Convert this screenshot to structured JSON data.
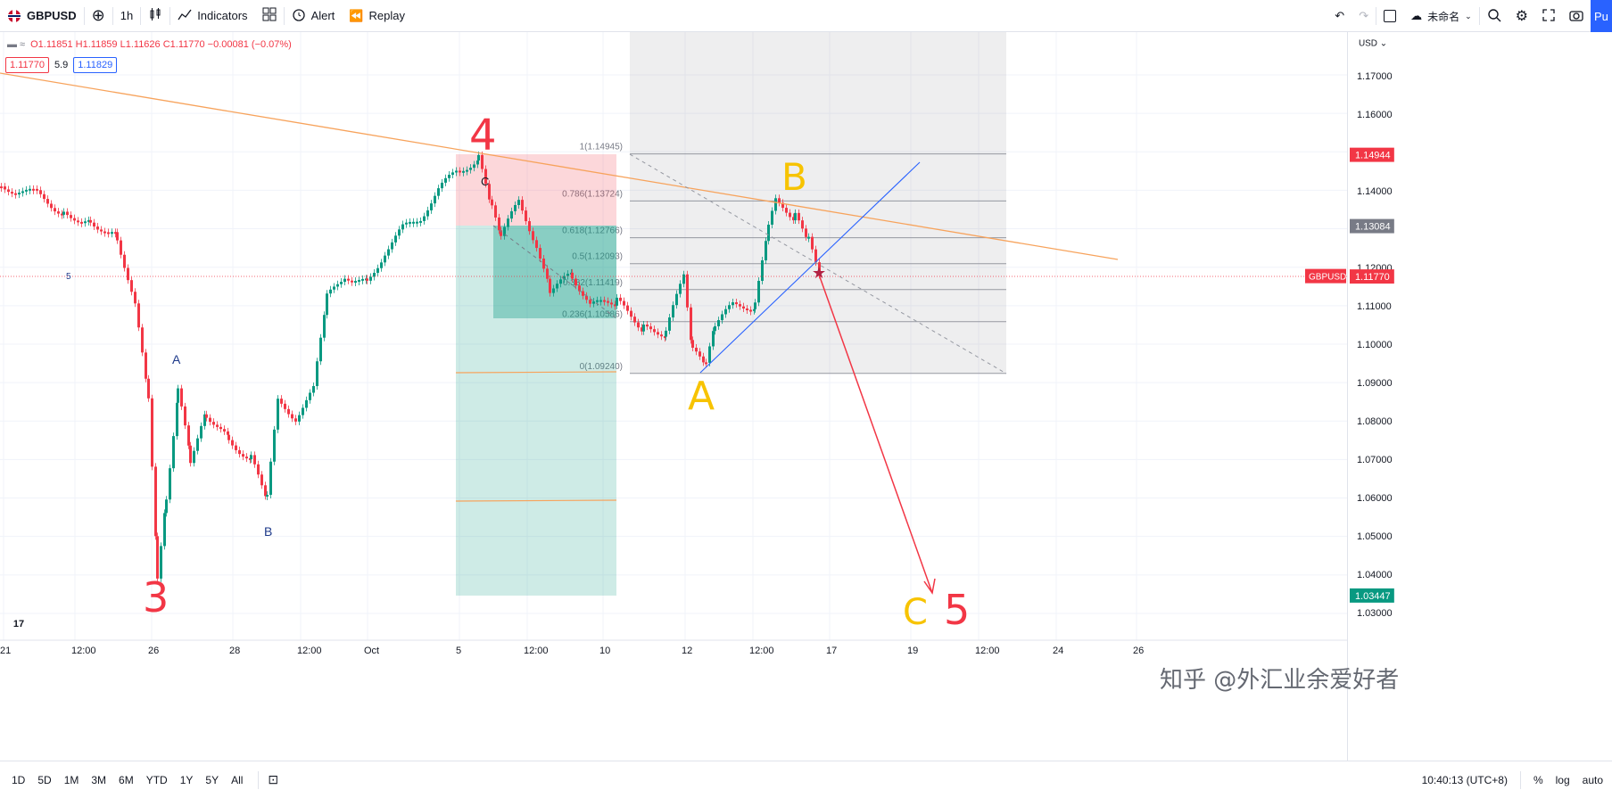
{
  "toolbar": {
    "symbol": "GBPUSD",
    "interval": "1h",
    "indicators": "Indicators",
    "alert": "Alert",
    "replay": "Replay",
    "layout_name": "未命名",
    "publish": "Pu"
  },
  "legend": {
    "ohlc": "O1.11851 H1.11859 L1.11626 C1.11770 −0.00081 (−0.07%)",
    "price_left": "1.11770",
    "spread": "5.9",
    "price_right": "1.11829"
  },
  "price_axis": {
    "currency": "USD",
    "ticks": [
      "1.17000",
      "1.16000",
      "1.15000",
      "1.14000",
      "1.13000",
      "1.12000",
      "1.11000",
      "1.10000",
      "1.09000",
      "1.08000",
      "1.07000",
      "1.06000",
      "1.05000",
      "1.04000",
      "1.03000"
    ],
    "tick_values": [
      1.17,
      1.16,
      1.15,
      1.14,
      1.13,
      1.12,
      1.11,
      1.1,
      1.09,
      1.08,
      1.07,
      1.06,
      1.05,
      1.04,
      1.03
    ],
    "tag_top": "1.14944",
    "tag_mid": "1.13084",
    "tag_symbol": "GBPUSD",
    "tag_last": "1.11770",
    "tag_bottom": "1.03447",
    "tag_red_color": "#f23645",
    "tag_gray_color": "#787b86",
    "tag_green_color": "#089981"
  },
  "time_axis": {
    "labels": [
      "21",
      "12:00",
      "26",
      "28",
      "12:00",
      "Oct",
      "5",
      "12:00",
      "10",
      "12",
      "12:00",
      "17",
      "19",
      "12:00",
      "24",
      "26"
    ]
  },
  "fib": {
    "levels": [
      {
        "ratio": 1,
        "label": "1(1.14945)",
        "price": 1.14945
      },
      {
        "ratio": 0.786,
        "label": "0.786(1.13724)",
        "price": 1.13724
      },
      {
        "ratio": 0.618,
        "label": "0.618(1.12766)",
        "price": 1.12766
      },
      {
        "ratio": 0.5,
        "label": "0.5(1.12093)",
        "price": 1.12093
      },
      {
        "ratio": 0.382,
        "label": "0.382(1.11419)",
        "price": 1.11419
      },
      {
        "ratio": 0.236,
        "label": "0.236(1.10586)",
        "price": 1.10586
      },
      {
        "ratio": 0,
        "label": "0(1.09240)",
        "price": 1.0924
      }
    ]
  },
  "annotations": {
    "wave4": "4",
    "wave3": "3",
    "waveA_left": "A",
    "waveB_left": "B",
    "waveC_small": "C",
    "bigA": "A",
    "bigB": "B",
    "bigC": "C",
    "wave5": "5",
    "small5": "5"
  },
  "bottom": {
    "ranges": [
      "1D",
      "5D",
      "1M",
      "3M",
      "6M",
      "YTD",
      "1Y",
      "5Y",
      "All"
    ],
    "clock": "10:40:13 (UTC+8)",
    "percent": "%",
    "log": "log",
    "auto": "auto"
  },
  "watermark": "知乎 @外汇业余爱好者",
  "logo": "17"
}
